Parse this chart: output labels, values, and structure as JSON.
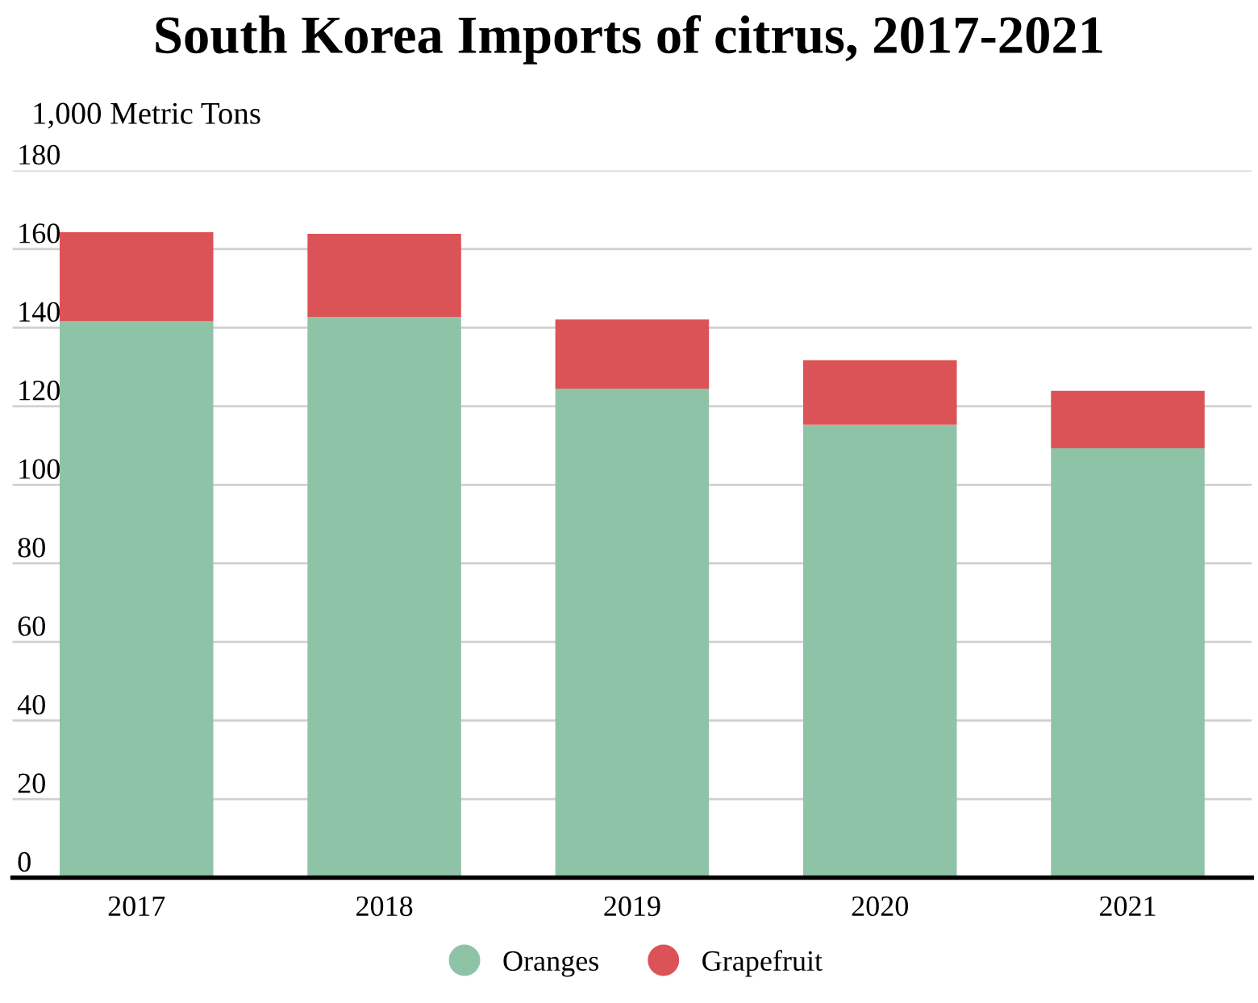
{
  "chart_data": {
    "type": "bar",
    "title": "South Korea Imports of citrus, 2017-2021",
    "ylabel": "1,000 Metric Tons",
    "categories": [
      "2017",
      "2018",
      "2019",
      "2020",
      "2021"
    ],
    "stacked": true,
    "series": [
      {
        "name": "Oranges",
        "color": "#8fc3a8",
        "values": [
          141.6,
          142.7,
          124.5,
          115.3,
          109.3
        ]
      },
      {
        "name": "Grapefruit",
        "color": "#dc5357",
        "values": [
          22.7,
          21.2,
          17.6,
          16.4,
          14.6
        ]
      }
    ],
    "ylim": [
      0,
      180
    ],
    "yticks": [
      0,
      20,
      40,
      60,
      80,
      100,
      120,
      140,
      160,
      180
    ],
    "grid": "y",
    "legend": "bottom"
  }
}
